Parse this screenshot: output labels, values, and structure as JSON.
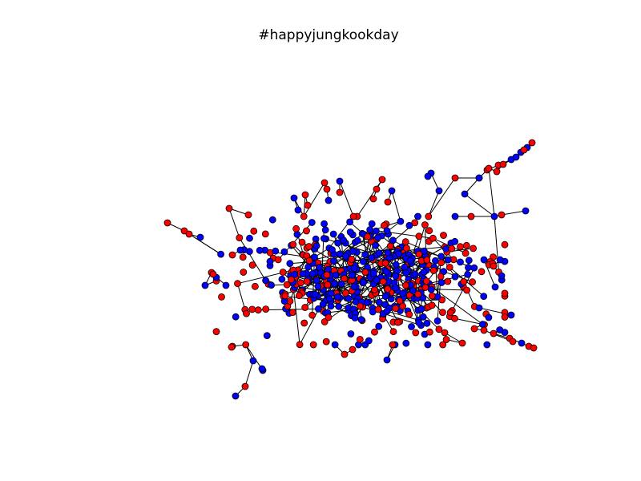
{
  "figure": {
    "title": "#happyjungkookday"
  },
  "colors": {
    "background": "#ffffff",
    "node_red": "#ff0000",
    "node_blue": "#0000ff",
    "node_outline": "#000000",
    "edge": "#000000"
  },
  "legend": {
    "shown": false
  }
}
